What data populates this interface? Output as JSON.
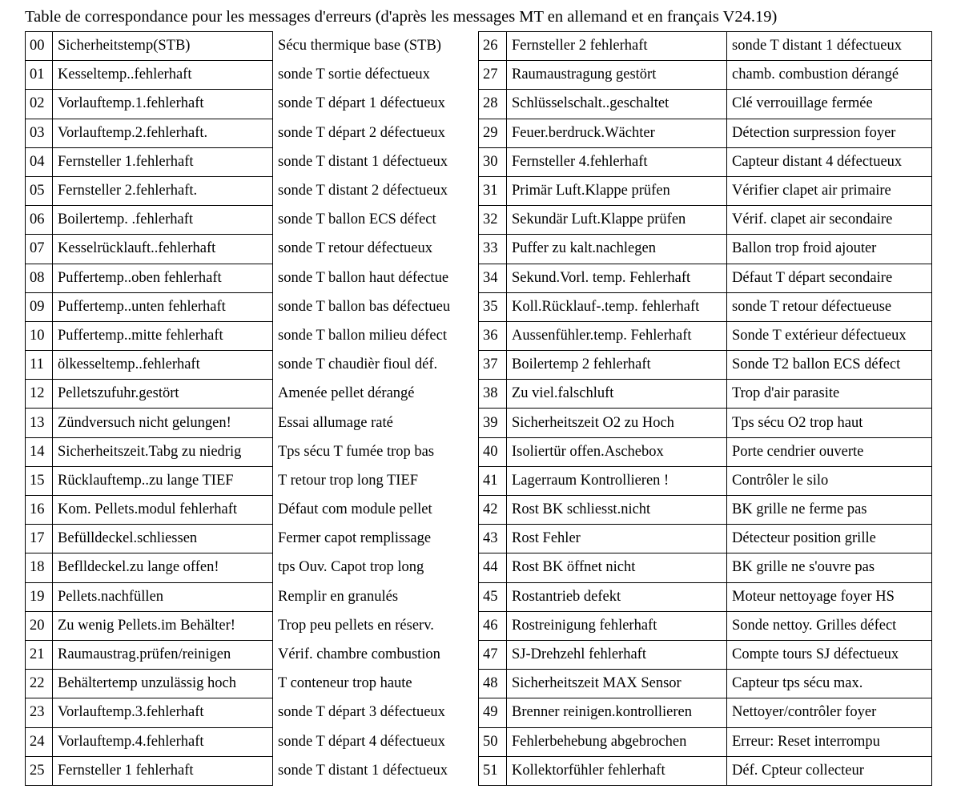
{
  "title": "Table de correspondance pour les messages d'erreurs (d'après les messages MT en allemand et en français V24.19)",
  "left_table": [
    {
      "code": "00",
      "de": "Sicherheitstemp(STB)",
      "fr": "Sécu thermique base (STB)"
    },
    {
      "code": "01",
      "de": "Kesseltemp..fehlerhaft",
      "fr": "sonde T sortie défectueux"
    },
    {
      "code": "02",
      "de": "Vorlauftemp.1.fehlerhaft",
      "fr": "sonde T départ 1 défectueux"
    },
    {
      "code": "03",
      "de": "Vorlauftemp.2.fehlerhaft.",
      "fr": "sonde T départ 2 défectueux"
    },
    {
      "code": "04",
      "de": "Fernsteller 1.fehlerhaft",
      "fr": "sonde T distant 1 défectueux"
    },
    {
      "code": "05",
      "de": "Fernsteller 2.fehlerhaft.",
      "fr": "sonde T distant 2 défectueux"
    },
    {
      "code": "06",
      "de": "Boilertemp. .fehlerhaft",
      "fr": "sonde T ballon ECS défect"
    },
    {
      "code": "07",
      "de": "Kesselrücklauft..fehlerhaft",
      "fr": "sonde T retour défectueux"
    },
    {
      "code": "08",
      "de": "Puffertemp..oben fehlerhaft",
      "fr": "sonde T ballon haut défectue"
    },
    {
      "code": "09",
      "de": "Puffertemp..unten fehlerhaft",
      "fr": "sonde T ballon bas défectueu"
    },
    {
      "code": "10",
      "de": "Puffertemp..mitte fehlerhaft",
      "fr": "sonde T ballon milieu défect"
    },
    {
      "code": "11",
      "de": "ölkesseltemp..fehlerhaft",
      "fr": "sonde T chaudièr fioul déf."
    },
    {
      "code": "12",
      "de": "Pelletszufuhr.gestört",
      "fr": "Amenée pellet dérangé"
    },
    {
      "code": "13",
      "de": "Zündversuch nicht gelungen!",
      "fr": "Essai allumage raté"
    },
    {
      "code": "14",
      "de": "Sicherheitszeit.Tabg zu niedrig",
      "fr": "Tps sécu T fumée trop bas"
    },
    {
      "code": "15",
      "de": "Rücklauftemp..zu lange TIEF",
      "fr": "T retour trop long TIEF"
    },
    {
      "code": "16",
      "de": "Kom. Pellets.modul fehlerhaft",
      "fr": "Défaut com module pellet"
    },
    {
      "code": "17",
      "de": "Befülldeckel.schliessen",
      "fr": "Fermer capot remplissage"
    },
    {
      "code": "18",
      "de": "Beflldeckel.zu lange offen!",
      "fr": "tps Ouv. Capot trop long"
    },
    {
      "code": "19",
      "de": "Pellets.nachfüllen",
      "fr": "Remplir en granulés"
    },
    {
      "code": "20",
      "de": "Zu wenig Pellets.im Behälter!",
      "fr": "Trop peu pellets en réserv."
    },
    {
      "code": "21",
      "de": "Raumaustrag.prüfen/reinigen",
      "fr": "Vérif. chambre combustion"
    },
    {
      "code": "22",
      "de": "Behältertemp unzulässig hoch",
      "fr": "T conteneur trop haute"
    },
    {
      "code": "23",
      "de": "Vorlauftemp.3.fehlerhaft",
      "fr": "sonde T départ 3 défectueux"
    },
    {
      "code": "24",
      "de": "Vorlauftemp.4.fehlerhaft",
      "fr": "sonde T départ 4 défectueux"
    },
    {
      "code": "25",
      "de": "Fernsteller 1 fehlerhaft",
      "fr": "sonde T distant 1 défectueux"
    }
  ],
  "right_table": [
    {
      "code": "26",
      "de": "Fernsteller 2 fehlerhaft",
      "fr": "sonde T distant 1 défectueux"
    },
    {
      "code": "27",
      "de": "Raumaustragung gestört",
      "fr": "chamb. combustion dérangé"
    },
    {
      "code": "28",
      "de": "Schlüsselschalt..geschaltet",
      "fr": "Clé verrouillage fermée"
    },
    {
      "code": "29",
      "de": "Feuer.berdruck.Wächter",
      "fr": "Détection surpression foyer"
    },
    {
      "code": "30",
      "de": "Fernsteller 4.fehlerhaft",
      "fr": "Capteur distant 4 défectueux"
    },
    {
      "code": "31",
      "de": "Primär Luft.Klappe prüfen",
      "fr": "Vérifier clapet air primaire"
    },
    {
      "code": "32",
      "de": "Sekundär Luft.Klappe prüfen",
      "fr": "Vérif. clapet air secondaire"
    },
    {
      "code": "33",
      "de": "Puffer zu kalt.nachlegen",
      "fr": "Ballon trop froid ajouter"
    },
    {
      "code": "34",
      "de": "Sekund.Vorl. temp. Fehlerhaft",
      "fr": "Défaut T départ secondaire"
    },
    {
      "code": "35",
      "de": "Koll.Rücklauf-.temp. fehlerhaft",
      "fr": "sonde T retour défectueuse"
    },
    {
      "code": "36",
      "de": "Aussenfühler.temp. Fehlerhaft",
      "fr": "Sonde T extérieur défectueux"
    },
    {
      "code": "37",
      "de": "Boilertemp 2 fehlerhaft",
      "fr": "Sonde T2 ballon ECS défect"
    },
    {
      "code": "38",
      "de": "Zu viel.falschluft",
      "fr": "Trop d'air parasite"
    },
    {
      "code": "39",
      "de": "Sicherheitszeit O2 zu Hoch",
      "fr": "Tps sécu O2 trop haut"
    },
    {
      "code": "40",
      "de": "Isoliertür offen.Aschebox",
      "fr": "Porte cendrier ouverte"
    },
    {
      "code": "41",
      "de": "Lagerraum Kontrollieren !",
      "fr": "Contrôler le silo"
    },
    {
      "code": "42",
      "de": "Rost BK schliesst.nicht",
      "fr": "BK grille ne ferme pas"
    },
    {
      "code": "43",
      "de": "Rost Fehler",
      "fr": "Détecteur position grille"
    },
    {
      "code": "44",
      "de": "Rost BK öffnet nicht",
      "fr": "BK grille ne s'ouvre pas"
    },
    {
      "code": "45",
      "de": "Rostantrieb defekt",
      "fr": "Moteur nettoyage foyer HS"
    },
    {
      "code": "46",
      "de": "Rostreinigung fehlerhaft",
      "fr": "Sonde nettoy. Grilles défect"
    },
    {
      "code": "47",
      "de": "SJ-Drehzehl fehlerhaft",
      "fr": "Compte tours SJ défectueux"
    },
    {
      "code": "48",
      "de": "Sicherheitszeit MAX Sensor",
      "fr": "Capteur tps sécu max."
    },
    {
      "code": "49",
      "de": "Brenner reinigen.kontrollieren",
      "fr": "Nettoyer/contrôler foyer"
    },
    {
      "code": "50",
      "de": "Fehlerbehebung abgebrochen",
      "fr": "Erreur: Reset interrompu"
    },
    {
      "code": "51",
      "de": "Kollektorfühler fehlerhaft",
      "fr": "Déf. Cpteur collecteur"
    }
  ]
}
